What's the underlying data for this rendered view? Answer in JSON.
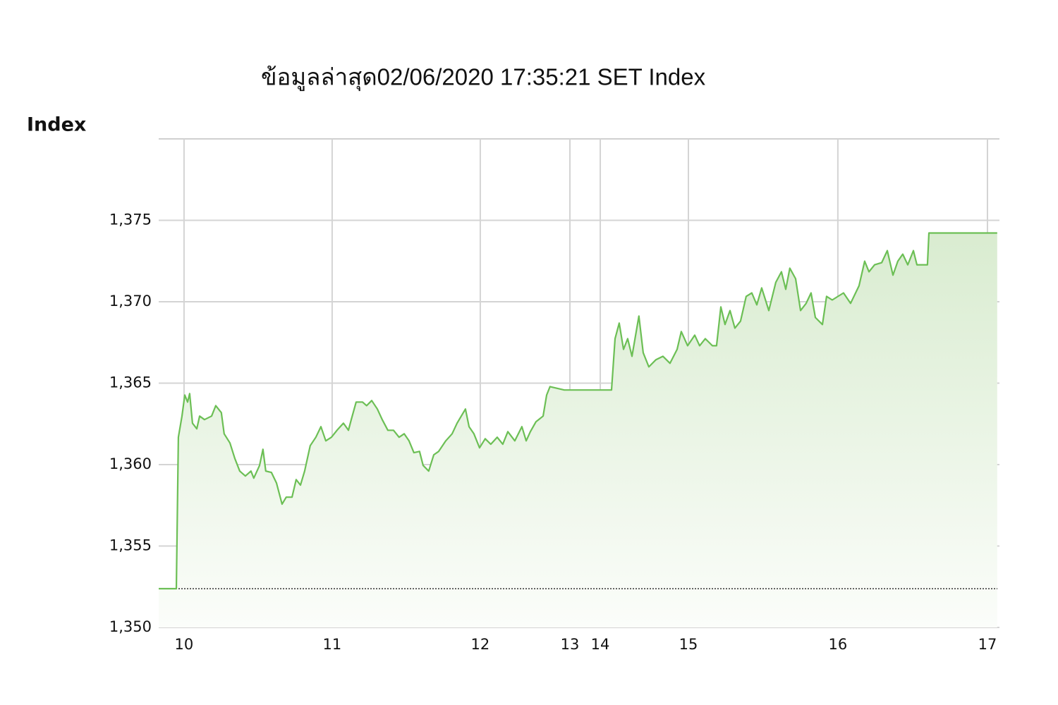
{
  "chart_data": {
    "type": "area",
    "title": "ข้อมูลล่าสุด02/06/2020 17:35:21  SET Index",
    "y_label": "Index",
    "color": "#6cbf55",
    "grid": true,
    "baseline": 1352.38,
    "xlim": [
      9.829,
      15.505
    ],
    "ylim": [
      1350,
      1380
    ],
    "xticks": [
      10,
      11,
      12,
      {
        "value": 12.605,
        "label": "13"
      },
      {
        "value": 12.81,
        "label": "14"
      },
      {
        "value": 13.405,
        "label": "15"
      },
      {
        "value": 14.414,
        "label": "16"
      },
      {
        "value": 15.424,
        "label": "17"
      }
    ],
    "yticks": [
      {
        "value": 1350,
        "label": "1,350"
      },
      {
        "value": 1355,
        "label": "1,355"
      },
      {
        "value": 1360,
        "label": "1,360"
      },
      {
        "value": 1365,
        "label": "1,365"
      },
      {
        "value": 1370,
        "label": "1,370"
      },
      {
        "value": 1375,
        "label": "1,375"
      }
    ],
    "x": [
      9.829,
      9.948,
      9.962,
      9.986,
      10.005,
      10.024,
      10.038,
      10.057,
      10.086,
      10.105,
      10.138,
      10.186,
      10.214,
      10.252,
      10.271,
      10.31,
      10.343,
      10.376,
      10.414,
      10.452,
      10.471,
      10.51,
      10.533,
      10.552,
      10.59,
      10.624,
      10.662,
      10.69,
      10.729,
      10.757,
      10.786,
      10.814,
      10.852,
      10.89,
      10.924,
      10.957,
      10.995,
      11.033,
      11.076,
      11.11,
      11.129,
      11.162,
      11.205,
      11.233,
      11.267,
      11.305,
      11.338,
      11.376,
      11.414,
      11.452,
      11.486,
      11.519,
      11.552,
      11.59,
      11.614,
      11.652,
      11.686,
      11.719,
      11.767,
      11.81,
      11.843,
      11.9,
      11.924,
      11.957,
      11.995,
      12.033,
      12.071,
      12.114,
      12.152,
      12.186,
      12.233,
      12.281,
      12.31,
      12.338,
      12.376,
      12.424,
      12.448,
      12.471,
      12.567,
      12.886,
      12.91,
      12.938,
      12.967,
      12.995,
      13.024,
      13.071,
      13.1,
      13.138,
      13.186,
      13.233,
      13.281,
      13.329,
      13.357,
      13.4,
      13.448,
      13.481,
      13.519,
      13.567,
      13.595,
      13.624,
      13.652,
      13.686,
      13.719,
      13.757,
      13.795,
      13.833,
      13.867,
      13.9,
      13.948,
      13.995,
      14.033,
      14.062,
      14.09,
      14.129,
      14.162,
      14.2,
      14.233,
      14.262,
      14.31,
      14.338,
      14.376,
      14.452,
      14.5,
      14.557,
      14.595,
      14.624,
      14.662,
      14.71,
      14.748,
      14.786,
      14.819,
      14.852,
      14.886,
      14.924,
      14.948,
      15.019,
      15.029,
      15.49
    ],
    "values": [
      1352.38,
      1352.38,
      1361.68,
      1362.98,
      1364.27,
      1363.84,
      1364.36,
      1362.54,
      1362.2,
      1362.98,
      1362.76,
      1362.98,
      1363.62,
      1363.19,
      1361.89,
      1361.33,
      1360.38,
      1359.6,
      1359.3,
      1359.6,
      1359.17,
      1359.95,
      1360.94,
      1359.6,
      1359.52,
      1358.87,
      1357.57,
      1358.0,
      1358.0,
      1359.08,
      1358.74,
      1359.6,
      1361.16,
      1361.68,
      1362.33,
      1361.46,
      1361.68,
      1362.11,
      1362.54,
      1362.11,
      1362.76,
      1363.84,
      1363.84,
      1363.62,
      1363.93,
      1363.41,
      1362.76,
      1362.11,
      1362.11,
      1361.68,
      1361.89,
      1361.46,
      1360.73,
      1360.81,
      1359.95,
      1359.6,
      1360.6,
      1360.81,
      1361.46,
      1361.89,
      1362.54,
      1363.41,
      1362.33,
      1361.89,
      1361.03,
      1361.59,
      1361.25,
      1361.68,
      1361.25,
      1362.02,
      1361.46,
      1362.33,
      1361.46,
      1362.02,
      1362.63,
      1362.98,
      1364.27,
      1364.79,
      1364.58,
      1364.58,
      1367.73,
      1368.69,
      1367.08,
      1367.73,
      1366.65,
      1369.12,
      1366.87,
      1366.0,
      1366.44,
      1366.65,
      1366.22,
      1367.08,
      1368.17,
      1367.3,
      1367.95,
      1367.3,
      1367.73,
      1367.3,
      1367.3,
      1369.68,
      1368.6,
      1369.46,
      1368.38,
      1368.81,
      1370.33,
      1370.54,
      1369.81,
      1370.85,
      1369.46,
      1371.19,
      1371.84,
      1370.76,
      1372.06,
      1371.41,
      1369.46,
      1369.9,
      1370.54,
      1369.03,
      1368.6,
      1370.33,
      1370.11,
      1370.54,
      1369.9,
      1370.98,
      1372.49,
      1371.84,
      1372.27,
      1372.4,
      1373.14,
      1371.63,
      1372.49,
      1372.92,
      1372.27,
      1373.14,
      1372.27,
      1372.27,
      1374.22,
      1374.22
    ]
  }
}
